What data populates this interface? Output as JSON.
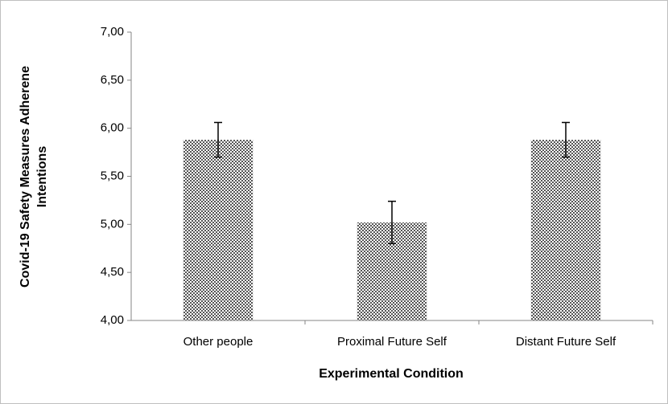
{
  "chart_data": {
    "type": "bar",
    "categories": [
      "Other people",
      "Proximal Future Self",
      "Distant Future Self"
    ],
    "values": [
      5.88,
      5.02,
      5.88
    ],
    "errors": [
      0.18,
      0.22,
      0.18
    ],
    "color": "#7f7f7f",
    "x_label": "Experimental Condition",
    "y_label": [
      "Covid-19 Safety Measures Adherene",
      "Intentions"
    ],
    "ylim": [
      4,
      7
    ],
    "yticks": [
      {
        "value": 4,
        "label": "4,00"
      },
      {
        "value": 4.5,
        "label": "4,50"
      },
      {
        "value": 5,
        "label": "5,00"
      },
      {
        "value": 5.5,
        "label": "5,50"
      },
      {
        "value": 6,
        "label": "6,00"
      },
      {
        "value": 6.5,
        "label": "6,50"
      },
      {
        "value": 7,
        "label": "7,00"
      }
    ],
    "grid": false
  }
}
